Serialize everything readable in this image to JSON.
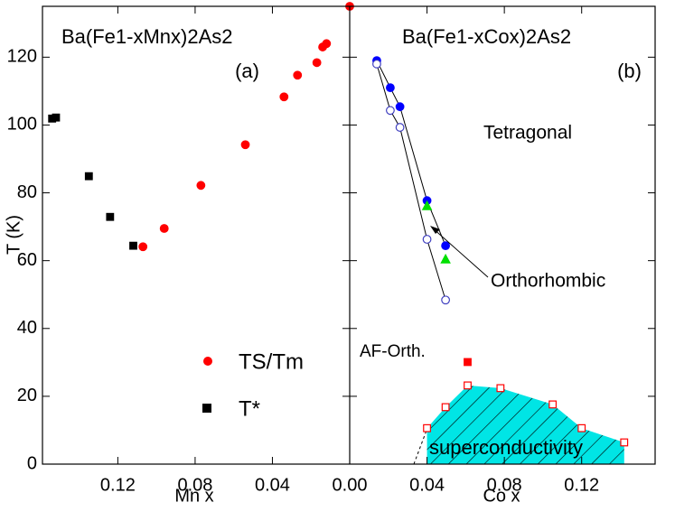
{
  "chart_data": [
    {
      "type": "scatter",
      "title": "Ba(Fe1-xMnx)2As2",
      "panel_label": "(a)",
      "x_label": "Mn x",
      "y_label": "T (K)",
      "xlim": [
        0.159,
        0
      ],
      "xticks": [
        0.12,
        0.08,
        0.04,
        {
          "value": 0,
          "label": "0.00"
        }
      ],
      "ylim": [
        0,
        135
      ],
      "yticks": [
        0,
        20,
        40,
        60,
        80,
        100,
        120
      ],
      "series": [
        {
          "name": "TS/Tm",
          "color": "#ff0000",
          "marker": "circle",
          "filled": true,
          "x": [
            0.107,
            0.096,
            0.077,
            0.054,
            0.034,
            0.027,
            0.017,
            0.014,
            0.012,
            0
          ],
          "values": [
            64.1,
            69.5,
            82.2,
            94.2,
            108.3,
            114.7,
            118.4,
            123,
            124,
            135
          ]
        },
        {
          "name": "T*",
          "color": "#000000",
          "marker": "square",
          "filled": true,
          "x": [
            0.154,
            0.152,
            0.135,
            0.124,
            0.112
          ],
          "values": [
            101.9,
            102.2,
            84.9,
            72.9,
            64.4
          ]
        }
      ]
    },
    {
      "type": "scatter",
      "title": "Ba(Fe1-xCox)2As2",
      "panel_label": "(b)",
      "x_label": "Co x",
      "xlim": [
        0,
        0.158
      ],
      "xticks": [
        0.04,
        0.08,
        0.12
      ],
      "ylim": [
        0,
        135
      ],
      "annotations": [
        "Tetragonal",
        "Orthorhombic",
        "AF-Orth.",
        "superconductivity"
      ],
      "series": [
        {
          "color": "#0000ff",
          "marker": "circle",
          "filled": true,
          "line": true,
          "x": [
            0.014,
            0.021,
            0.026,
            0.04,
            0.0496
          ],
          "values": [
            119,
            111,
            105.4,
            77.7,
            64.4
          ]
        },
        {
          "color": "#4040c0",
          "marker": "circle",
          "filled": false,
          "line": true,
          "x": [
            0.014,
            0.021,
            0.026,
            0.04,
            0.0496
          ],
          "values": [
            118,
            104.3,
            99.3,
            66.3,
            48.4
          ]
        },
        {
          "color": "#00e000",
          "marker": "triangle",
          "filled": true,
          "x": [
            0.04,
            0.0496
          ],
          "values": [
            76.1,
            60.4
          ]
        },
        {
          "color": "#ff0000",
          "marker": "square",
          "filled": false,
          "area": true,
          "x": [
            0.04,
            0.0496,
            0.061,
            0.078,
            0.105,
            0.12,
            0.142
          ],
          "values": [
            10.6,
            16.8,
            23.2,
            22.4,
            17.6,
            10.6,
            6.4
          ]
        },
        {
          "color": "#ff0000",
          "marker": "square",
          "filled": true,
          "x": [
            0.061
          ],
          "values": [
            30.1
          ]
        }
      ]
    }
  ]
}
